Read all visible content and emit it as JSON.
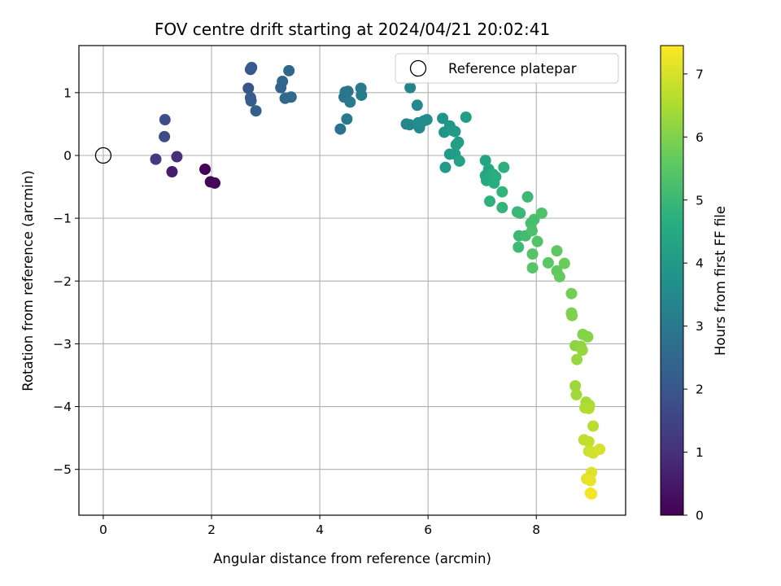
{
  "chart_data": {
    "type": "scatter",
    "title": "FOV centre drift starting at 2024/04/21 20:02:41",
    "xlabel": "Angular distance from reference (arcmin)",
    "ylabel": "Rotation from reference (arcmin)",
    "xlim": [
      -0.45,
      9.65
    ],
    "ylim": [
      -5.73,
      1.75
    ],
    "xticks": [
      0,
      2,
      4,
      6,
      8
    ],
    "yticks": [
      1,
      0,
      -1,
      -2,
      -3,
      -4,
      -5
    ],
    "grid": true,
    "colormap": "viridis",
    "colorbar": {
      "label": "Hours from first FF file",
      "min": 0,
      "max": 7.45,
      "ticks": [
        0,
        1,
        2,
        3,
        4,
        5,
        6,
        7
      ]
    },
    "legend": {
      "position": "top-right",
      "entries": [
        "Reference platepar"
      ]
    },
    "reference_point": {
      "x": 0,
      "y": 0
    },
    "points": [
      {
        "x": 1.88,
        "y": -0.22,
        "t": 0.05
      },
      {
        "x": 1.98,
        "y": -0.42,
        "t": 0.1
      },
      {
        "x": 2.06,
        "y": -0.44,
        "t": 0.15
      },
      {
        "x": 1.27,
        "y": -0.26,
        "t": 0.6
      },
      {
        "x": 1.36,
        "y": -0.02,
        "t": 1.0
      },
      {
        "x": 0.97,
        "y": -0.06,
        "t": 1.3
      },
      {
        "x": 1.13,
        "y": 0.3,
        "t": 1.7
      },
      {
        "x": 1.14,
        "y": 0.57,
        "t": 1.8
      },
      {
        "x": 2.68,
        "y": 1.07,
        "t": 2.0
      },
      {
        "x": 2.72,
        "y": 1.37,
        "t": 2.05
      },
      {
        "x": 2.74,
        "y": 1.4,
        "t": 2.1
      },
      {
        "x": 2.72,
        "y": 0.92,
        "t": 2.15
      },
      {
        "x": 2.73,
        "y": 0.87,
        "t": 2.2
      },
      {
        "x": 2.82,
        "y": 0.71,
        "t": 2.3
      },
      {
        "x": 3.28,
        "y": 1.08,
        "t": 2.4
      },
      {
        "x": 3.31,
        "y": 1.18,
        "t": 2.45
      },
      {
        "x": 3.43,
        "y": 1.35,
        "t": 2.5
      },
      {
        "x": 3.36,
        "y": 0.91,
        "t": 2.55
      },
      {
        "x": 3.47,
        "y": 0.93,
        "t": 2.6
      },
      {
        "x": 4.38,
        "y": 0.42,
        "t": 2.8
      },
      {
        "x": 4.45,
        "y": 0.93,
        "t": 2.85
      },
      {
        "x": 4.47,
        "y": 1.01,
        "t": 2.9
      },
      {
        "x": 4.52,
        "y": 1.02,
        "t": 2.95
      },
      {
        "x": 4.5,
        "y": 0.58,
        "t": 3.0
      },
      {
        "x": 4.56,
        "y": 0.85,
        "t": 3.05
      },
      {
        "x": 4.76,
        "y": 1.07,
        "t": 3.1
      },
      {
        "x": 4.77,
        "y": 0.96,
        "t": 3.15
      },
      {
        "x": 5.67,
        "y": 1.08,
        "t": 3.3
      },
      {
        "x": 5.6,
        "y": 0.5,
        "t": 3.35
      },
      {
        "x": 5.66,
        "y": 0.49,
        "t": 3.4
      },
      {
        "x": 5.8,
        "y": 0.8,
        "t": 3.45
      },
      {
        "x": 5.84,
        "y": 0.44,
        "t": 3.5
      },
      {
        "x": 5.82,
        "y": 0.52,
        "t": 3.55
      },
      {
        "x": 5.92,
        "y": 0.55,
        "t": 3.6
      },
      {
        "x": 5.98,
        "y": 0.57,
        "t": 3.65
      },
      {
        "x": 6.27,
        "y": 0.59,
        "t": 3.8
      },
      {
        "x": 6.3,
        "y": 0.37,
        "t": 3.85
      },
      {
        "x": 6.4,
        "y": 0.47,
        "t": 3.9
      },
      {
        "x": 6.45,
        "y": 0.4,
        "t": 3.95
      },
      {
        "x": 6.5,
        "y": 0.38,
        "t": 4.0
      },
      {
        "x": 6.4,
        "y": 0.02,
        "t": 4.0
      },
      {
        "x": 6.32,
        "y": -0.19,
        "t": 4.05
      },
      {
        "x": 6.5,
        "y": 0.02,
        "t": 4.1
      },
      {
        "x": 6.52,
        "y": 0.17,
        "t": 4.15
      },
      {
        "x": 6.56,
        "y": 0.21,
        "t": 4.2
      },
      {
        "x": 6.58,
        "y": -0.09,
        "t": 4.25
      },
      {
        "x": 6.7,
        "y": 0.61,
        "t": 4.1
      },
      {
        "x": 7.06,
        "y": -0.08,
        "t": 4.35
      },
      {
        "x": 7.12,
        "y": -0.22,
        "t": 4.4
      },
      {
        "x": 7.06,
        "y": -0.32,
        "t": 4.45
      },
      {
        "x": 7.08,
        "y": -0.4,
        "t": 4.5
      },
      {
        "x": 7.15,
        "y": -0.35,
        "t": 4.55
      },
      {
        "x": 7.2,
        "y": -0.3,
        "t": 4.6
      },
      {
        "x": 7.22,
        "y": -0.44,
        "t": 4.65
      },
      {
        "x": 7.25,
        "y": -0.34,
        "t": 4.7
      },
      {
        "x": 7.4,
        "y": -0.19,
        "t": 4.75
      },
      {
        "x": 7.14,
        "y": -0.73,
        "t": 4.8
      },
      {
        "x": 7.37,
        "y": -0.58,
        "t": 4.85
      },
      {
        "x": 7.37,
        "y": -0.83,
        "t": 4.9
      },
      {
        "x": 7.65,
        "y": -0.9,
        "t": 4.95
      },
      {
        "x": 7.7,
        "y": -0.92,
        "t": 5.0
      },
      {
        "x": 7.68,
        "y": -1.28,
        "t": 5.05
      },
      {
        "x": 7.67,
        "y": -1.46,
        "t": 5.1
      },
      {
        "x": 7.8,
        "y": -1.28,
        "t": 5.15
      },
      {
        "x": 7.84,
        "y": -0.66,
        "t": 5.0
      },
      {
        "x": 7.9,
        "y": -1.08,
        "t": 5.2
      },
      {
        "x": 7.96,
        "y": -1.02,
        "t": 5.25
      },
      {
        "x": 7.92,
        "y": -1.2,
        "t": 5.3
      },
      {
        "x": 8.1,
        "y": -0.92,
        "t": 5.35
      },
      {
        "x": 8.02,
        "y": -1.37,
        "t": 5.4
      },
      {
        "x": 7.93,
        "y": -1.57,
        "t": 5.45
      },
      {
        "x": 7.93,
        "y": -1.79,
        "t": 5.5
      },
      {
        "x": 8.22,
        "y": -1.71,
        "t": 5.55
      },
      {
        "x": 8.38,
        "y": -1.52,
        "t": 5.6
      },
      {
        "x": 8.38,
        "y": -1.84,
        "t": 5.65
      },
      {
        "x": 8.43,
        "y": -1.93,
        "t": 5.7
      },
      {
        "x": 8.52,
        "y": -1.72,
        "t": 5.75
      },
      {
        "x": 8.65,
        "y": -2.2,
        "t": 5.85
      },
      {
        "x": 8.65,
        "y": -2.51,
        "t": 5.95
      },
      {
        "x": 8.66,
        "y": -2.55,
        "t": 6.0
      },
      {
        "x": 8.86,
        "y": -2.85,
        "t": 6.05
      },
      {
        "x": 8.95,
        "y": -2.89,
        "t": 6.1
      },
      {
        "x": 8.72,
        "y": -3.03,
        "t": 6.15
      },
      {
        "x": 8.82,
        "y": -3.04,
        "t": 6.2
      },
      {
        "x": 8.85,
        "y": -3.1,
        "t": 6.25
      },
      {
        "x": 8.75,
        "y": -3.25,
        "t": 6.3
      },
      {
        "x": 8.72,
        "y": -3.67,
        "t": 6.35
      },
      {
        "x": 8.74,
        "y": -3.81,
        "t": 6.4
      },
      {
        "x": 8.92,
        "y": -3.93,
        "t": 6.45
      },
      {
        "x": 8.98,
        "y": -3.98,
        "t": 6.5
      },
      {
        "x": 8.9,
        "y": -4.02,
        "t": 6.55
      },
      {
        "x": 8.97,
        "y": -4.03,
        "t": 6.6
      },
      {
        "x": 9.05,
        "y": -4.31,
        "t": 6.7
      },
      {
        "x": 8.88,
        "y": -4.53,
        "t": 6.75
      },
      {
        "x": 8.97,
        "y": -4.56,
        "t": 6.8
      },
      {
        "x": 8.97,
        "y": -4.71,
        "t": 6.85
      },
      {
        "x": 9.02,
        "y": -4.72,
        "t": 6.9
      },
      {
        "x": 9.05,
        "y": -4.74,
        "t": 6.95
      },
      {
        "x": 9.17,
        "y": -4.68,
        "t": 7.0
      },
      {
        "x": 9.02,
        "y": -5.05,
        "t": 7.1
      },
      {
        "x": 8.93,
        "y": -5.15,
        "t": 7.15
      },
      {
        "x": 9.0,
        "y": -5.18,
        "t": 7.2
      },
      {
        "x": 9.0,
        "y": -5.38,
        "t": 7.3
      },
      {
        "x": 9.02,
        "y": -5.39,
        "t": 7.35
      }
    ]
  }
}
